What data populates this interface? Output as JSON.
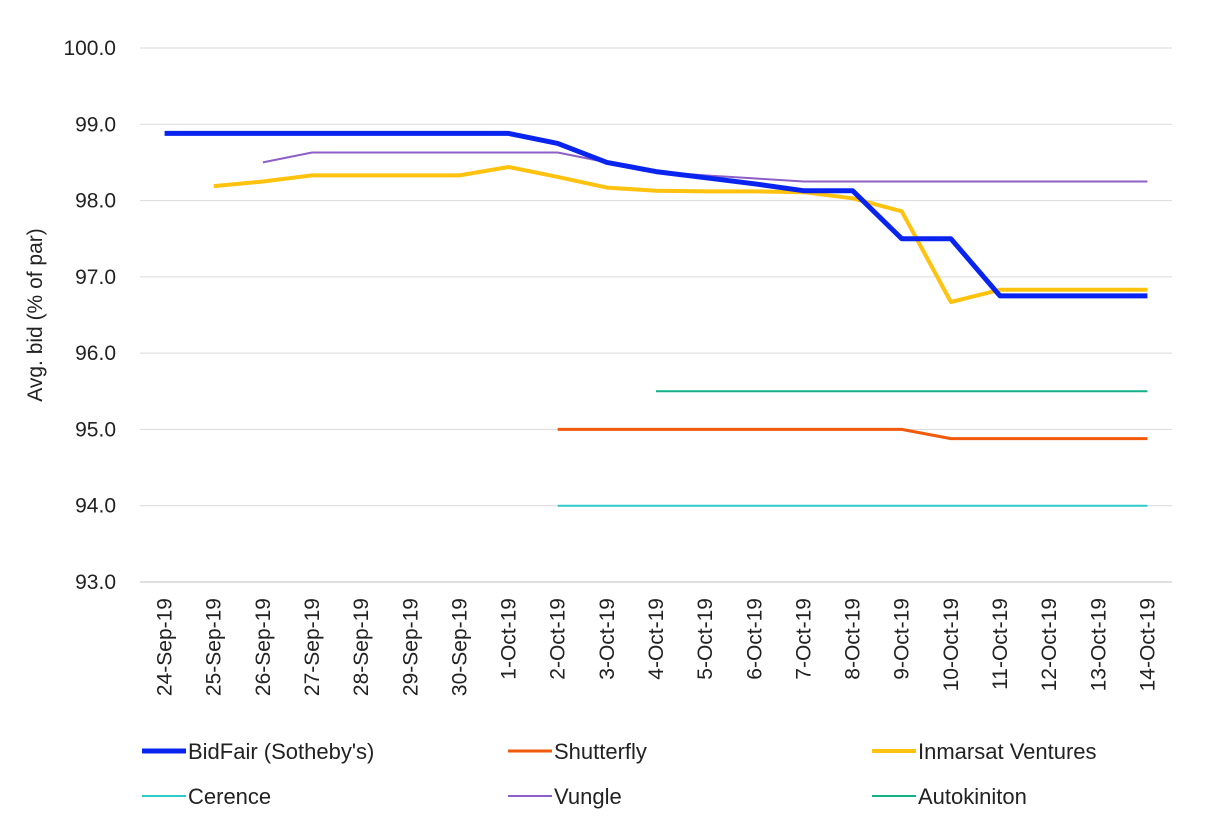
{
  "chart_data": {
    "type": "line",
    "title": "",
    "xlabel": "",
    "ylabel": "Avg. bid (% of par)",
    "ylim": [
      93.0,
      100.0
    ],
    "yticks": [
      "93.0",
      "94.0",
      "95.0",
      "96.0",
      "97.0",
      "98.0",
      "99.0",
      "100.0"
    ],
    "grid": true,
    "legend_position": "bottom",
    "categories": [
      "24-Sep-19",
      "25-Sep-19",
      "26-Sep-19",
      "27-Sep-19",
      "28-Sep-19",
      "29-Sep-19",
      "30-Sep-19",
      "1-Oct-19",
      "2-Oct-19",
      "3-Oct-19",
      "4-Oct-19",
      "5-Oct-19",
      "6-Oct-19",
      "7-Oct-19",
      "8-Oct-19",
      "9-Oct-19",
      "10-Oct-19",
      "11-Oct-19",
      "12-Oct-19",
      "13-Oct-19",
      "14-Oct-19"
    ],
    "series": [
      {
        "name": "BidFair (Sotheby's)",
        "color": "#0a24f0",
        "values": [
          98.88,
          98.88,
          98.88,
          98.88,
          98.88,
          98.88,
          98.88,
          98.88,
          98.75,
          98.5,
          98.38,
          98.3,
          98.22,
          98.13,
          98.13,
          97.5,
          97.5,
          96.75,
          96.75,
          96.75,
          96.75
        ]
      },
      {
        "name": "Shutterfly",
        "color": "#f05a0a",
        "values": [
          null,
          null,
          null,
          null,
          null,
          null,
          null,
          null,
          95.0,
          95.0,
          95.0,
          95.0,
          95.0,
          95.0,
          95.0,
          95.0,
          94.88,
          94.88,
          94.88,
          94.88,
          94.88
        ]
      },
      {
        "name": "Inmarsat Ventures",
        "color": "#ffc20e",
        "values": [
          null,
          98.19,
          98.25,
          98.33,
          98.33,
          98.33,
          98.33,
          98.44,
          98.31,
          98.17,
          98.13,
          98.12,
          98.12,
          98.11,
          98.03,
          97.86,
          96.67,
          96.83,
          96.83,
          96.83,
          96.83
        ]
      },
      {
        "name": "Cerence",
        "color": "#2ec9c9",
        "values": [
          null,
          null,
          null,
          null,
          null,
          null,
          null,
          null,
          94.0,
          94.0,
          94.0,
          94.0,
          94.0,
          94.0,
          94.0,
          94.0,
          94.0,
          94.0,
          94.0,
          94.0,
          94.0
        ]
      },
      {
        "name": "Vungle",
        "color": "#8e5fc7",
        "values": [
          null,
          null,
          98.5,
          98.63,
          98.63,
          98.63,
          98.63,
          98.63,
          98.63,
          98.5,
          98.38,
          98.33,
          98.29,
          98.25,
          98.25,
          98.25,
          98.25,
          98.25,
          98.25,
          98.25,
          98.25
        ]
      },
      {
        "name": "Autokiniton",
        "color": "#14b08a",
        "values": [
          null,
          null,
          null,
          null,
          null,
          null,
          null,
          null,
          null,
          null,
          95.5,
          95.5,
          95.5,
          95.5,
          95.5,
          95.5,
          95.5,
          95.5,
          95.5,
          95.5,
          95.5
        ]
      }
    ]
  }
}
